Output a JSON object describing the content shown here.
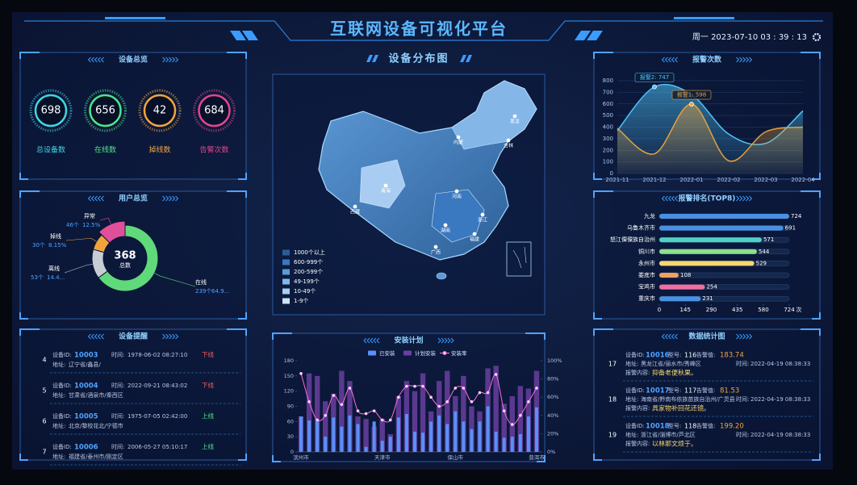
{
  "header": {
    "title": "互联网设备可视化平台",
    "datetime": "周一 2023-07-10 03 : 39 : 13"
  },
  "overview": {
    "title": "设备总览",
    "items": [
      {
        "label": "总设备数",
        "value": 698,
        "color": "#3fd6e6"
      },
      {
        "label": "在线数",
        "value": 656,
        "color": "#4ee58a"
      },
      {
        "label": "掉线数",
        "value": 42,
        "color": "#f0a53c"
      },
      {
        "label": "告警次数",
        "value": 684,
        "color": "#e4468e"
      }
    ]
  },
  "reminders": {
    "title": "设备提醒",
    "id_label": "设备ID:",
    "time_label": "时间:",
    "addr_label": "地址:",
    "items": [
      {
        "no": 4,
        "id": "10003",
        "time": "1978-06-02 08:27:10",
        "status": "下线",
        "status_color": "#ff5a5a",
        "addr": "辽宁省/鑫县/"
      },
      {
        "no": 5,
        "id": "10004",
        "time": "2022-09-21 08:43:02",
        "status": "下线",
        "status_color": "#ff5a5a",
        "addr": "甘肃省/酒泉市/秦西区"
      },
      {
        "no": 6,
        "id": "10005",
        "time": "1975-07-05 02:42:00",
        "status": "上线",
        "status_color": "#4ee58a",
        "addr": "北京/黎校花北/宁德市"
      },
      {
        "no": 7,
        "id": "10006",
        "time": "2006-05-27 05:10:17",
        "status": "上线",
        "status_color": "#4ee58a",
        "addr": "福建省/泰州市/刚定区"
      }
    ]
  },
  "map": {
    "title": "设备分布图",
    "places": [
      "内蒙",
      "黑龙",
      "吉林",
      "青海",
      "西藏",
      "河南",
      "湖南",
      "广西",
      "福建",
      "浙江"
    ],
    "legend": [
      {
        "label": "1000个以上",
        "color": "#2b5d95"
      },
      {
        "label": "600-999个",
        "color": "#3a78c0"
      },
      {
        "label": "200-599个",
        "color": "#5d9ad8"
      },
      {
        "label": "49-199个",
        "color": "#84b6e8"
      },
      {
        "label": "10-49个",
        "color": "#a9cdf2"
      },
      {
        "label": "1-9个",
        "color": "#cfe3f7"
      }
    ]
  },
  "stats": {
    "title": "数据统计图",
    "id_label": "设备ID:",
    "model_label": "型号:",
    "alarm_label": "告警值:",
    "addr_label": "地址:",
    "time_label": "时间:",
    "content_label": "报警内容:",
    "items": [
      {
        "no": 17,
        "id": "10016",
        "model": "116",
        "alarm": "183.74",
        "addr": "黑龙江省/丽水市/秀峰区",
        "time": "2022-04-19 08:38:33",
        "content": "抑备老便秋果。"
      },
      {
        "no": 18,
        "id": "10017",
        "model": "117",
        "alarm": "81.53",
        "addr": "海南省/黔南布依族苗族自治州/广灵县",
        "time": "2022-04-19 08:38:33",
        "content": "具家物补回花还镜。"
      },
      {
        "no": 19,
        "id": "10018",
        "model": "118",
        "alarm": "199.20",
        "addr": "浙江省/淄博市/芦北区",
        "time": "2022-04-19 08:38:33",
        "content": "以林那文烦于。"
      }
    ]
  },
  "chart_data": [
    {
      "type": "pie",
      "title": "用户总览",
      "center_value": 368,
      "center_label": "总数",
      "categories": [
        "在线",
        "离线",
        "掉线",
        "异常"
      ],
      "values": [
        239,
        53,
        30,
        46
      ],
      "value_labels": [
        "239个",
        "53个",
        "30个",
        "46个"
      ],
      "percent_labels": [
        "64.9...",
        "14.4...",
        "8.15%",
        "12.5%"
      ],
      "colors": [
        "#5fd97a",
        "#c8ccd4",
        "#f0a53c",
        "#e0509a"
      ]
    },
    {
      "type": "line",
      "title": "报警次数",
      "categories": [
        "2021-11",
        "2021-12",
        "2022-01",
        "2022-02",
        "2022-03",
        "2022-04"
      ],
      "ylim": [
        0,
        800
      ],
      "yticks": [
        0,
        100,
        200,
        300,
        400,
        500,
        600,
        700,
        800
      ],
      "grid": true,
      "series": [
        {
          "color": "#4fc3f7",
          "values": [
            370,
            747,
            680,
            340,
            260,
            540
          ]
        },
        {
          "color": "#e6a23c",
          "values": [
            390,
            170,
            598,
            110,
            360,
            400
          ]
        }
      ],
      "annotations": [
        "报警2: 747",
        "报警1: 598"
      ]
    },
    {
      "type": "hbar",
      "title": "报警排名(TOP8)",
      "categories": [
        "九龙",
        "乌鲁木齐市",
        "怒江傈僳族自治州",
        "铜川市",
        "永州市",
        "娄底市",
        "宝鸡市",
        "重庆市"
      ],
      "values": [
        724,
        691,
        571,
        544,
        529,
        108,
        254,
        231
      ],
      "colors": [
        "#4a90e2",
        "#4a90e2",
        "#4fd1c5",
        "#8be08b",
        "#f5d76e",
        "#f0a060",
        "#f06ea0",
        "#4a90e2"
      ],
      "xlim": [
        0,
        724
      ],
      "xticks": [
        0,
        145,
        290,
        435,
        580,
        724
      ],
      "unit": "次"
    },
    {
      "type": "combo",
      "title": "安装计划",
      "categories": [
        "滨州市",
        null,
        null,
        null,
        null,
        null,
        null,
        null,
        null,
        null,
        "天津市",
        null,
        null,
        null,
        null,
        null,
        null,
        null,
        null,
        "保山市",
        null,
        null,
        null,
        null,
        null,
        null,
        null,
        null,
        null,
        "普洱市"
      ],
      "ylim": [
        0,
        180
      ],
      "yticks": [
        0,
        30,
        60,
        90,
        120,
        150,
        180
      ],
      "y2lim": [
        0,
        100
      ],
      "y2ticks": [
        {
          "value": 0,
          "label": "0%"
        },
        {
          "value": 20,
          "label": "20%"
        },
        {
          "value": 40,
          "label": "40%"
        },
        {
          "value": 60,
          "label": "60%"
        },
        {
          "value": 80,
          "label": "80%"
        },
        {
          "value": 100,
          "label": "100%"
        }
      ],
      "series": [
        {
          "name": "已安装",
          "color": "#5b8ff9",
          "values": [
            70,
            62,
            60,
            30,
            68,
            50,
            72,
            55,
            10,
            60,
            22,
            30,
            68,
            75,
            40,
            38,
            60,
            72,
            55,
            80,
            60,
            45,
            60,
            90,
            40,
            28,
            30,
            35,
            70,
            88
          ]
        },
        {
          "name": "计划安装",
          "color": "#6a3fa0",
          "values": [
            70,
            155,
            150,
            100,
            115,
            160,
            140,
            70,
            65,
            50,
            65,
            35,
            110,
            140,
            120,
            155,
            80,
            140,
            160,
            110,
            150,
            90,
            80,
            165,
            170,
            95,
            110,
            130,
            125,
            160
          ]
        },
        {
          "name": "安装率",
          "axis": "y2",
          "color": "#ff6bd5",
          "values": [
            86,
            55,
            35,
            40,
            62,
            52,
            70,
            45,
            42,
            45,
            35,
            35,
            60,
            72,
            72,
            72,
            60,
            50,
            55,
            70,
            70,
            55,
            65,
            65,
            85,
            45,
            30,
            40,
            55,
            70
          ]
        }
      ]
    }
  ]
}
